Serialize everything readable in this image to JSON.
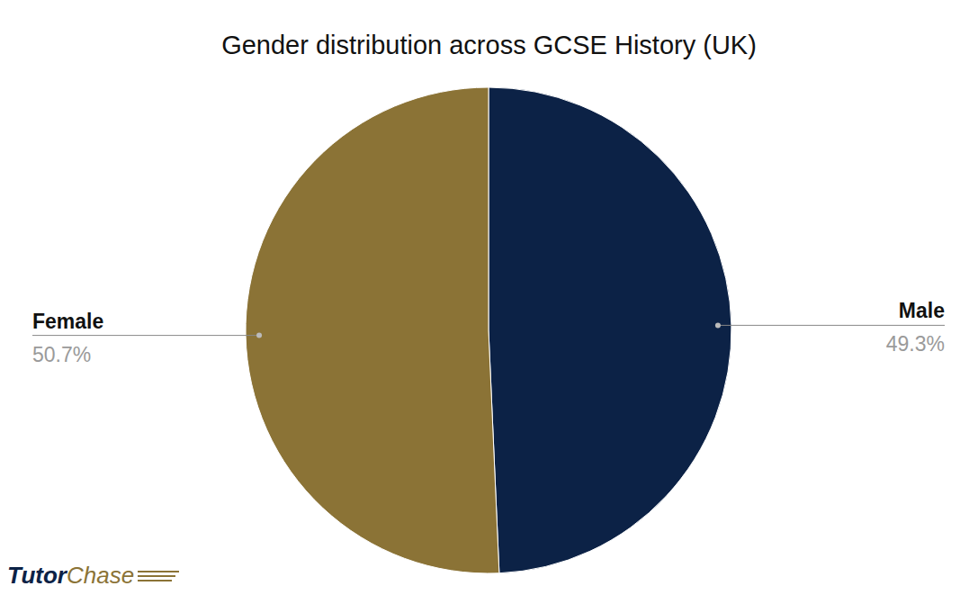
{
  "chart_data": {
    "type": "pie",
    "title": "Gender distribution across GCSE History (UK)",
    "categories": [
      "Male",
      "Female"
    ],
    "values": [
      49.3,
      50.7
    ],
    "value_labels": [
      "49.3%",
      "50.7%"
    ],
    "colors": [
      "#0c2246",
      "#8b7336"
    ],
    "data_labels": true,
    "annotations": [
      "Tutor",
      "Chase"
    ]
  }
}
